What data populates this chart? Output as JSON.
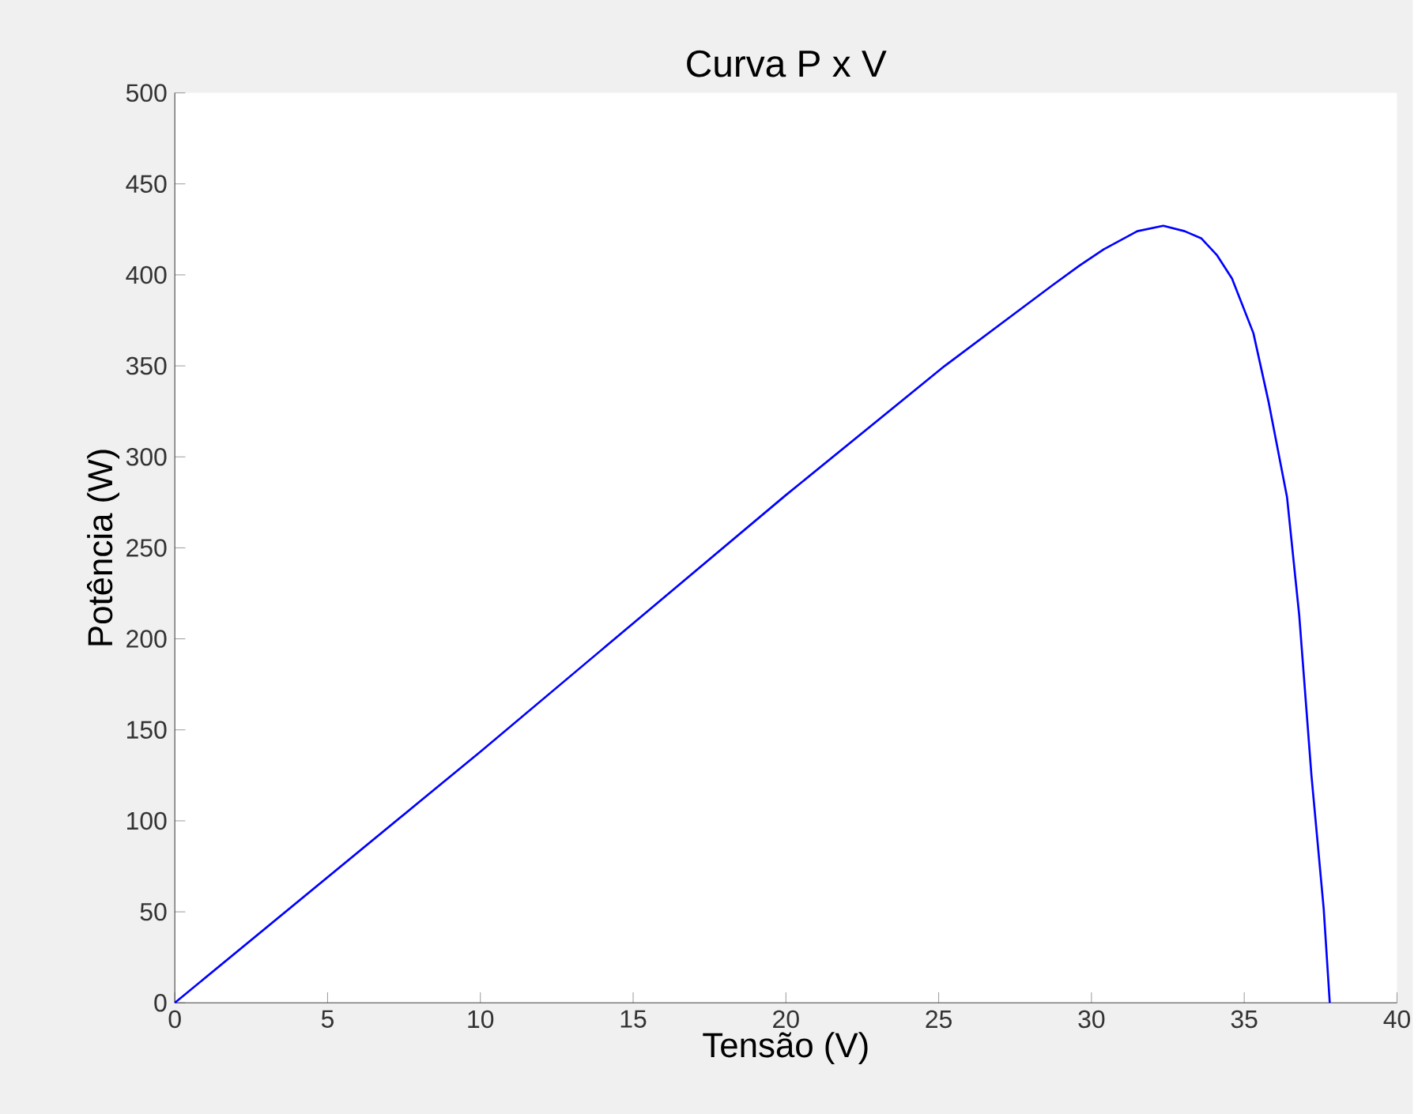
{
  "chart_data": {
    "type": "line",
    "title": "Curva P x V",
    "xlabel": "Tensão (V)",
    "ylabel": "Potência (W)",
    "x": [
      0,
      10,
      20,
      25.2,
      28.7,
      29.6,
      30.4,
      31.5,
      32.35,
      33.05,
      33.6,
      34.1,
      34.6,
      35.3,
      35.8,
      36.4,
      36.8,
      37.2,
      37.6,
      37.8
    ],
    "series": [
      {
        "color": "#0000ff",
        "values": [
          0,
          138,
          279,
          350,
          394,
          405,
          414,
          424,
          427,
          424,
          420,
          411,
          398,
          368,
          330,
          278,
          213,
          125,
          52,
          0
        ]
      }
    ],
    "xlim": [
      0,
      40
    ],
    "ylim": [
      0,
      500
    ],
    "xticks": [
      0,
      5,
      10,
      15,
      20,
      25,
      30,
      35,
      40
    ],
    "yticks": [
      0,
      50,
      100,
      150,
      200,
      250,
      300,
      350,
      400,
      450,
      500
    ],
    "grid": false,
    "marker": "none",
    "line_style": "solid"
  }
}
